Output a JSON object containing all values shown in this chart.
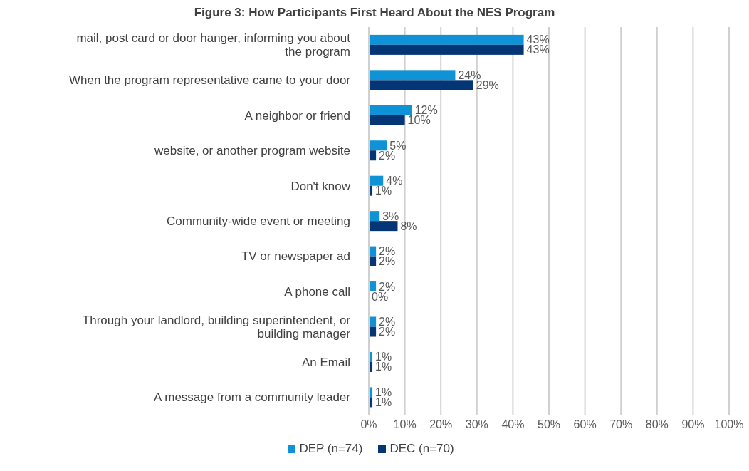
{
  "chart_data": {
    "type": "bar",
    "orientation": "horizontal",
    "title": "Figure 3: How Participants First Heard About the NES Program",
    "categories": [
      "mail, post card or door hanger, informing you about the program",
      "When the program representative came to your door",
      "A neighbor or friend",
      "website, or another program website",
      "Don't know",
      "Community-wide event or meeting",
      "TV or newspaper ad",
      "A phone call",
      "Through your landlord, building superintendent, or building manager",
      "An Email",
      "A message from a community leader"
    ],
    "series": [
      {
        "name": "DEP (n=74)",
        "color": "#1092d6",
        "values": [
          43,
          24,
          12,
          5,
          4,
          3,
          2,
          2,
          2,
          1,
          1
        ],
        "value_labels": [
          "43%",
          "24%",
          "12%",
          "5%",
          "4%",
          "3%",
          "2%",
          "2%",
          "2%",
          "1%",
          "1%"
        ]
      },
      {
        "name": "DEC (n=70)",
        "color": "#043574",
        "values": [
          43,
          29,
          10,
          2,
          1,
          8,
          2,
          0,
          2,
          1,
          1
        ],
        "value_labels": [
          "43%",
          "29%",
          "10%",
          "2%",
          "1%",
          "8%",
          "2%",
          "0%",
          "2%",
          "1%",
          "1%"
        ]
      }
    ],
    "xlim": [
      0,
      100
    ],
    "xticks": [
      {
        "value": 0,
        "label": "0%"
      },
      {
        "value": 10,
        "label": "10%"
      },
      {
        "value": 20,
        "label": "20%"
      },
      {
        "value": 30,
        "label": "30%"
      },
      {
        "value": 40,
        "label": "40%"
      },
      {
        "value": 50,
        "label": "50%"
      },
      {
        "value": 60,
        "label": "60%"
      },
      {
        "value": 70,
        "label": "70%"
      },
      {
        "value": 80,
        "label": "80%"
      },
      {
        "value": 90,
        "label": "90%"
      },
      {
        "value": 100,
        "label": "100%"
      }
    ],
    "grid": "x",
    "legend": "bottom"
  }
}
